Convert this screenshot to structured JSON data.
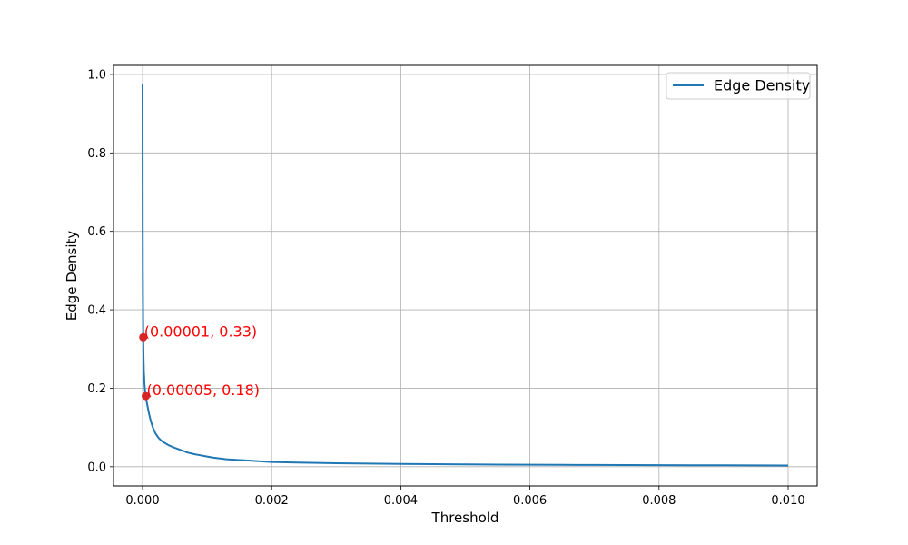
{
  "chart_data": {
    "type": "line",
    "title": "",
    "xlabel": "Threshold",
    "ylabel": "Edge Density",
    "xlim": [
      -0.00045,
      0.01045
    ],
    "ylim": [
      -0.049,
      1.023
    ],
    "grid": true,
    "legend_placement": "top-right",
    "x_ticks": [
      0.0,
      0.002,
      0.004,
      0.006,
      0.008,
      0.01
    ],
    "x_tick_labels": [
      "0.000",
      "0.002",
      "0.004",
      "0.006",
      "0.008",
      "0.010"
    ],
    "y_ticks": [
      0.0,
      0.2,
      0.4,
      0.6,
      0.8,
      1.0
    ],
    "y_tick_labels": [
      "0.0",
      "0.2",
      "0.4",
      "0.6",
      "0.8",
      "1.0"
    ],
    "series": [
      {
        "name": "Edge Density",
        "color": "#1f77b4",
        "x": [
          0.0,
          1e-06,
          2e-06,
          4e-06,
          7e-06,
          1e-05,
          1.5e-05,
          2e-05,
          3e-05,
          4e-05,
          5e-05,
          7e-05,
          0.0001,
          0.00013,
          0.00016,
          0.0002,
          0.00025,
          0.0003,
          0.0004,
          0.0005,
          0.0006,
          0.0007,
          0.0008,
          0.0009,
          0.001,
          0.0011,
          0.0012,
          0.0013,
          0.0014,
          0.0015,
          0.0016,
          0.0018,
          0.002,
          0.0023,
          0.0026,
          0.003,
          0.0035,
          0.004,
          0.0045,
          0.005,
          0.0055,
          0.006,
          0.0065,
          0.007,
          0.0075,
          0.008,
          0.0085,
          0.009,
          0.0095,
          0.01
        ],
        "y": [
          0.975,
          0.82,
          0.66,
          0.5,
          0.4,
          0.33,
          0.28,
          0.245,
          0.21,
          0.19,
          0.18,
          0.16,
          0.135,
          0.115,
          0.1,
          0.085,
          0.073,
          0.065,
          0.055,
          0.048,
          0.042,
          0.036,
          0.032,
          0.029,
          0.026,
          0.023,
          0.021,
          0.019,
          0.018,
          0.017,
          0.016,
          0.014,
          0.012,
          0.011,
          0.01,
          0.009,
          0.008,
          0.007,
          0.0065,
          0.006,
          0.0055,
          0.005,
          0.0048,
          0.0045,
          0.0043,
          0.004,
          0.0038,
          0.0036,
          0.0034,
          0.0032
        ]
      }
    ],
    "highlight_points": [
      {
        "x": 1e-05,
        "y": 0.33,
        "label": "(0.00001, 0.33)",
        "color": "#ff0000"
      },
      {
        "x": 5e-05,
        "y": 0.18,
        "label": "(0.00005, 0.18)",
        "color": "#ff0000"
      }
    ]
  }
}
